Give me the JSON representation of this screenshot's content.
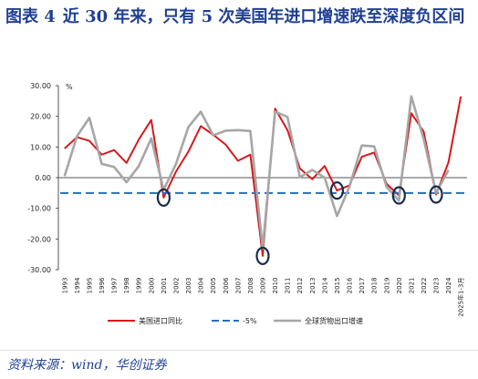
{
  "title": {
    "label": "图表 4",
    "text": "近 30 年来，只有 5 次美国年进口增速跌至深度负区间"
  },
  "source": "资料来源：wind，华创证券",
  "chart_data": {
    "type": "line",
    "ylabel": "%",
    "ylim": [
      -30,
      30
    ],
    "yticks": [
      30,
      20,
      10,
      0,
      -10,
      -20,
      -30
    ],
    "ytick_labels": [
      "30.00",
      "20.00",
      "10.00",
      "0.00",
      "-10.00",
      "-20.00",
      "-30.00"
    ],
    "categories": [
      "1993",
      "1994",
      "1995",
      "1996",
      "1997",
      "1998",
      "1999",
      "2000",
      "2001",
      "2002",
      "2003",
      "2004",
      "2005",
      "2006",
      "2007",
      "2008",
      "2009",
      "2010",
      "2011",
      "2012",
      "2013",
      "2014",
      "2015",
      "2016",
      "2017",
      "2018",
      "2019",
      "2020",
      "2021",
      "2022",
      "2023",
      "2024",
      "2025年1-3月"
    ],
    "series": [
      {
        "name": "美国进口同比",
        "color": "#d7191c",
        "style": "solid",
        "values": [
          9.5,
          13.2,
          12.0,
          7.5,
          9.0,
          4.8,
          12.5,
          18.8,
          -6.5,
          2.0,
          8.5,
          16.8,
          14.0,
          10.8,
          5.5,
          7.5,
          -25.5,
          22.5,
          15.5,
          3.0,
          -0.5,
          3.8,
          -4.2,
          -2.5,
          6.8,
          8.2,
          -2.0,
          -5.8,
          21.0,
          15.0,
          -5.5,
          5.0,
          26.5
        ]
      },
      {
        "name": "-5%",
        "color": "#1f6fbf",
        "style": "dashed",
        "values": [
          -5,
          -5,
          -5,
          -5,
          -5,
          -5,
          -5,
          -5,
          -5,
          -5,
          -5,
          -5,
          -5,
          -5,
          -5,
          -5,
          -5,
          -5,
          -5,
          -5,
          -5,
          -5,
          -5,
          -5,
          -5,
          -5,
          -5,
          -5,
          -5,
          -5,
          -5,
          -5,
          -5
        ]
      },
      {
        "name": "全球货物出口增速",
        "color": "#a6a6a6",
        "style": "solid",
        "values": [
          0.5,
          13.5,
          19.5,
          4.5,
          3.5,
          -1.5,
          3.8,
          12.8,
          -4.0,
          4.5,
          16.5,
          21.5,
          13.8,
          15.3,
          15.5,
          15.2,
          -23.0,
          21.5,
          19.8,
          0.2,
          2.5,
          0.0,
          -12.5,
          -3.0,
          10.5,
          10.2,
          -3.0,
          -7.5,
          26.5,
          12.5,
          -5.0,
          2.5,
          null
        ]
      }
    ],
    "highlights": [
      "2001",
      "2009",
      "2015",
      "2020",
      "2023"
    ],
    "highlight_color": "#1a2b4c",
    "legend_position": "bottom",
    "grid": false
  }
}
